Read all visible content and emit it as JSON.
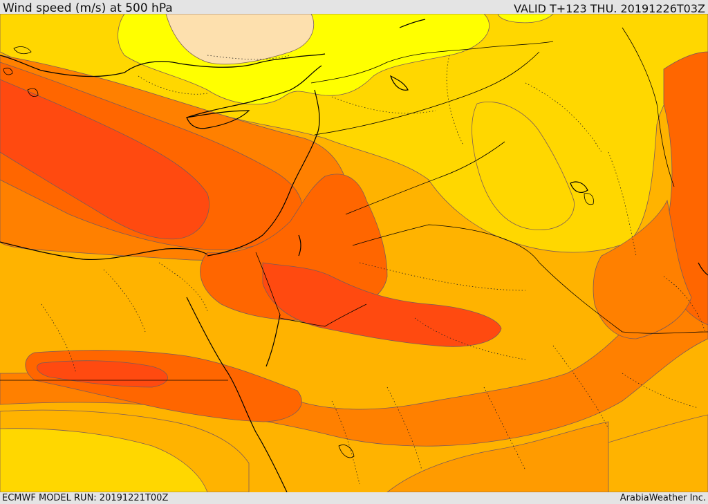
{
  "header": {
    "title": "Wind speed (m/s) at 500 hPa",
    "valid": "VALID T+123 THU. 20191226T03Z"
  },
  "footer": {
    "model_run": "ECMWF MODEL RUN: 20191221T00Z",
    "credit": "ArabiaWeather Inc."
  },
  "map": {
    "field": "wind speed",
    "level": "500 hPa",
    "palette": {
      "very_light": "#fde0ae",
      "lightest": "#ffff00",
      "light": "#ffd700",
      "mid_light": "#ffb300",
      "mid": "#ff9b00",
      "mid_dark": "#ff8000",
      "dark": "#ff6600",
      "darker": "#ff4a10",
      "contour_line": "#7a5a5a",
      "coast_line": "#000000"
    }
  }
}
